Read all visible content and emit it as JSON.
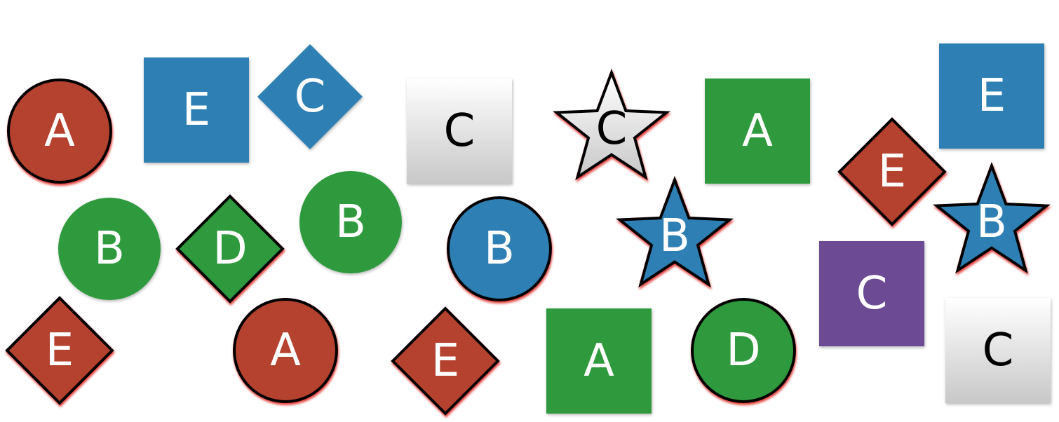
{
  "shapes": [
    {
      "id": "s1",
      "kind": "circle",
      "color": "red",
      "outlined": true,
      "label": "A"
    },
    {
      "id": "s2",
      "kind": "square",
      "color": "blue",
      "outlined": false,
      "label": "E"
    },
    {
      "id": "s3",
      "kind": "diamond",
      "color": "blue",
      "outlined": false,
      "label": "C"
    },
    {
      "id": "s4",
      "kind": "square",
      "color": "gray",
      "outlined": false,
      "label": "C"
    },
    {
      "id": "s5",
      "kind": "star",
      "color": "gray",
      "outlined": true,
      "label": "C"
    },
    {
      "id": "s6",
      "kind": "square",
      "color": "green",
      "outlined": false,
      "label": "A"
    },
    {
      "id": "s7",
      "kind": "square",
      "color": "blue",
      "outlined": false,
      "label": "E"
    },
    {
      "id": "s8",
      "kind": "diamond",
      "color": "red",
      "outlined": true,
      "label": "E"
    },
    {
      "id": "s9",
      "kind": "circle",
      "color": "green",
      "outlined": false,
      "label": "B"
    },
    {
      "id": "s10",
      "kind": "diamond",
      "color": "green",
      "outlined": true,
      "label": "D"
    },
    {
      "id": "s11",
      "kind": "circle",
      "color": "green",
      "outlined": false,
      "label": "B"
    },
    {
      "id": "s12",
      "kind": "circle",
      "color": "blue",
      "outlined": true,
      "label": "B"
    },
    {
      "id": "s13",
      "kind": "star",
      "color": "blue",
      "outlined": true,
      "label": "B"
    },
    {
      "id": "s14",
      "kind": "star",
      "color": "blue",
      "outlined": true,
      "label": "B"
    },
    {
      "id": "s15",
      "kind": "square",
      "color": "purple",
      "outlined": false,
      "label": "C"
    },
    {
      "id": "s16",
      "kind": "diamond",
      "color": "red",
      "outlined": true,
      "label": "E"
    },
    {
      "id": "s17",
      "kind": "circle",
      "color": "red",
      "outlined": true,
      "label": "A"
    },
    {
      "id": "s18",
      "kind": "diamond",
      "color": "red",
      "outlined": true,
      "label": "E"
    },
    {
      "id": "s19",
      "kind": "square",
      "color": "green",
      "outlined": false,
      "label": "A"
    },
    {
      "id": "s20",
      "kind": "circle",
      "color": "green",
      "outlined": true,
      "label": "D"
    },
    {
      "id": "s21",
      "kind": "square",
      "color": "gray",
      "outlined": false,
      "label": "C"
    }
  ],
  "palette": {
    "red": "#b5432f",
    "blue": "#2e7fb3",
    "green": "#2f9a3e",
    "purple": "#6c4c94",
    "gray": "#e6e6e6"
  }
}
